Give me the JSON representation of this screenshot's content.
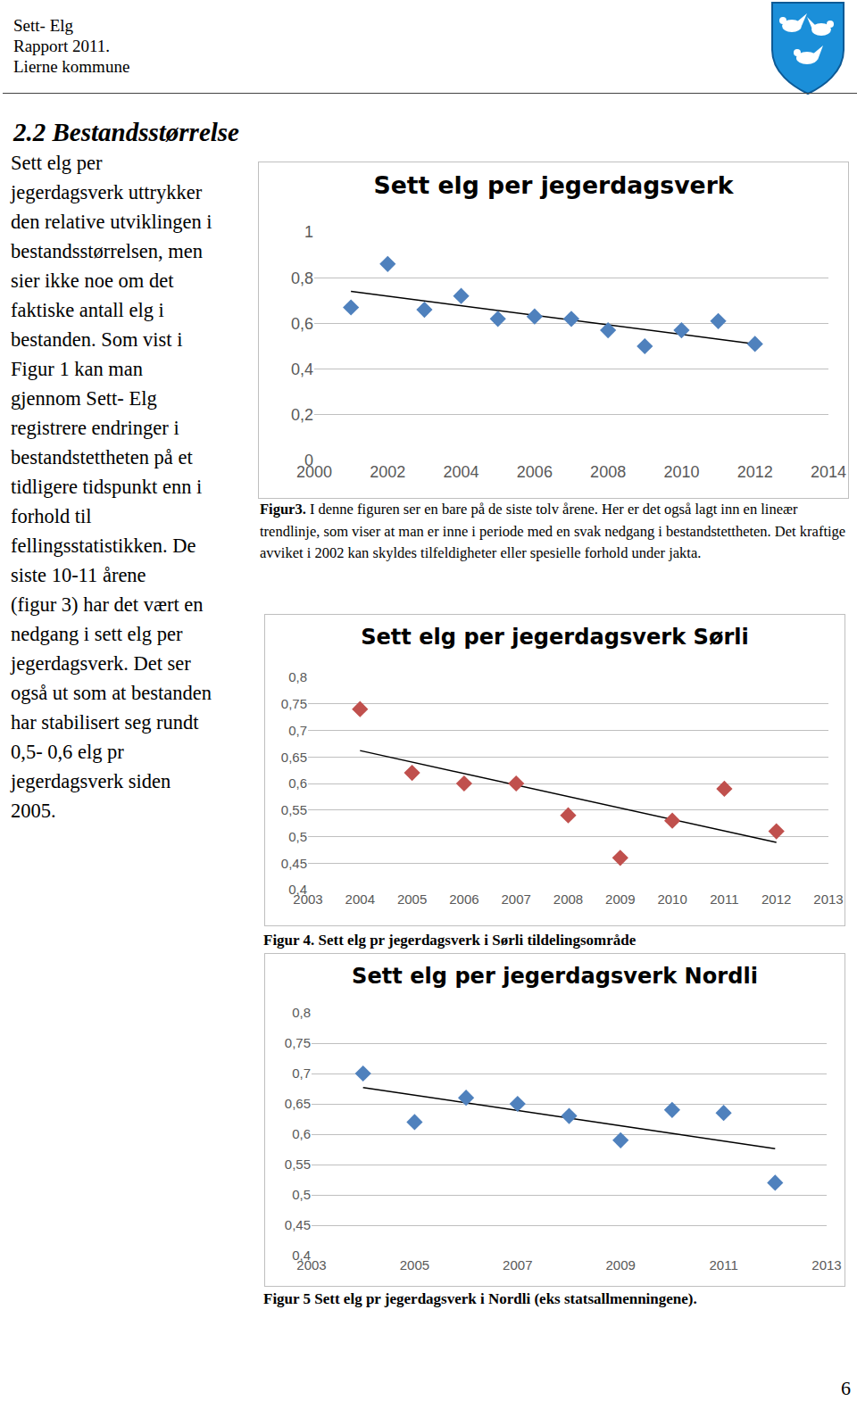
{
  "header": {
    "lines": [
      "Sett- Elg",
      "Rapport 2011.",
      "Lierne kommune"
    ]
  },
  "heading": "2.2 Bestandsstørrelse",
  "body": {
    "lines": [
      "Sett elg per",
      "jegerdagsverk uttrykker",
      "den relative utviklingen i",
      "bestandsstørrelsen, men",
      "sier ikke noe om det",
      "faktiske antall elg i",
      "bestanden. Som vist i",
      "Figur 1 kan man",
      "gjennom Sett- Elg",
      "registrere endringer i",
      "bestandstettheten på et",
      "tidligere tidspunkt enn i",
      "forhold til",
      "fellingsstatistikken. De",
      "siste 10-11 årene",
      "(figur 3) har det vært en",
      "nedgang i sett elg per",
      "jegerdagsverk. Det ser",
      "også ut som at bestanden",
      "har stabilisert seg rundt",
      "0,5- 0,6 elg pr",
      "jegerdagsverk siden",
      "2005."
    ]
  },
  "captions": [
    {
      "label": "Figur3.",
      "text": " I denne figuren ser en bare på de  siste tolv  årene. Her er det også lagt inn en lineær trendlinje, som viser at man er inne i periode med en svak nedgang i bestandstettheten. Det kraftige avviket i 2002 kan skyldes tilfeldigheter eller spesielle forhold under jakta."
    },
    {
      "label": "Figur 4. Sett elg pr jegerdagsverk i Sørli tildelingsområde",
      "text": ""
    },
    {
      "label": "Figur 5 Sett elg pr jegerdagsverk i Nordli (eks statsallmenningene).",
      "text": ""
    }
  ],
  "page_number": "6",
  "chart_data": [
    {
      "type": "scatter",
      "title": "Sett elg per jegerdagsverk",
      "marker": "diamond",
      "color": "#4f81bd",
      "x": [
        2001,
        2002,
        2003,
        2004,
        2005,
        2006,
        2007,
        2008,
        2009,
        2010,
        2011,
        2012
      ],
      "values": [
        0.67,
        0.86,
        0.66,
        0.72,
        0.62,
        0.63,
        0.62,
        0.57,
        0.5,
        0.57,
        0.61,
        0.51
      ],
      "trendline": {
        "x": [
          2001,
          2012
        ],
        "values": [
          0.74,
          0.51
        ],
        "color": "#000000"
      },
      "xlim": [
        2000,
        2014
      ],
      "xticks": [
        2000,
        2002,
        2004,
        2006,
        2008,
        2010,
        2012,
        2014
      ],
      "ylim": [
        0,
        1
      ],
      "yticks": [
        0,
        {
          "value": 0.2,
          "label": "0,2"
        },
        {
          "value": 0.4,
          "label": "0,4"
        },
        {
          "value": 0.6,
          "label": "0,6"
        },
        {
          "value": 0.8,
          "label": "0,8"
        },
        1
      ],
      "grid": true
    },
    {
      "type": "scatter",
      "title": "Sett elg per jegerdagsverk Sørli",
      "marker": "diamond",
      "color": "#c0504d",
      "x": [
        2004,
        2005,
        2006,
        2007,
        2008,
        2009,
        2010,
        2011,
        2012
      ],
      "values": [
        0.74,
        0.62,
        0.6,
        0.6,
        0.54,
        0.46,
        0.53,
        0.59,
        0.51
      ],
      "trendline": {
        "x": [
          2004,
          2012
        ],
        "values": [
          0.662,
          0.489
        ],
        "color": "#000000"
      },
      "xlim": [
        2003,
        2013
      ],
      "xticks": [
        2003,
        2004,
        2005,
        2006,
        2007,
        2008,
        2009,
        2010,
        2011,
        2012,
        2013
      ],
      "ylim": [
        0.4,
        0.8
      ],
      "yticks": [
        {
          "value": 0.4,
          "label": "0,4"
        },
        {
          "value": 0.45,
          "label": "0,45"
        },
        {
          "value": 0.5,
          "label": "0,5"
        },
        {
          "value": 0.55,
          "label": "0,55"
        },
        {
          "value": 0.6,
          "label": "0,6"
        },
        {
          "value": 0.65,
          "label": "0,65"
        },
        {
          "value": 0.7,
          "label": "0,7"
        },
        {
          "value": 0.75,
          "label": "0,75"
        },
        {
          "value": 0.8,
          "label": "0,8"
        }
      ],
      "grid": true
    },
    {
      "type": "scatter",
      "title": "Sett elg per jegerdagsverk Nordli",
      "marker": "diamond",
      "color": "#4f81bd",
      "x": [
        2004,
        2005,
        2006,
        2007,
        2008,
        2009,
        2010,
        2011,
        2012
      ],
      "values": [
        0.7,
        0.62,
        0.66,
        0.65,
        0.63,
        0.59,
        0.64,
        0.635,
        0.52
      ],
      "trendline": {
        "x": [
          2004,
          2012
        ],
        "values": [
          0.677,
          0.576
        ],
        "color": "#000000"
      },
      "xlim": [
        2003,
        2013
      ],
      "xticks": [
        2003,
        2005,
        2007,
        2009,
        2011,
        2013
      ],
      "ylim": [
        0.4,
        0.8
      ],
      "yticks": [
        {
          "value": 0.4,
          "label": "0,4"
        },
        {
          "value": 0.45,
          "label": "0,45"
        },
        {
          "value": 0.5,
          "label": "0,5"
        },
        {
          "value": 0.55,
          "label": "0,55"
        },
        {
          "value": 0.6,
          "label": "0,6"
        },
        {
          "value": 0.65,
          "label": "0,65"
        },
        {
          "value": 0.7,
          "label": "0,7"
        },
        {
          "value": 0.75,
          "label": "0,75"
        },
        {
          "value": 0.8,
          "label": "0,8"
        }
      ],
      "grid": true
    }
  ]
}
